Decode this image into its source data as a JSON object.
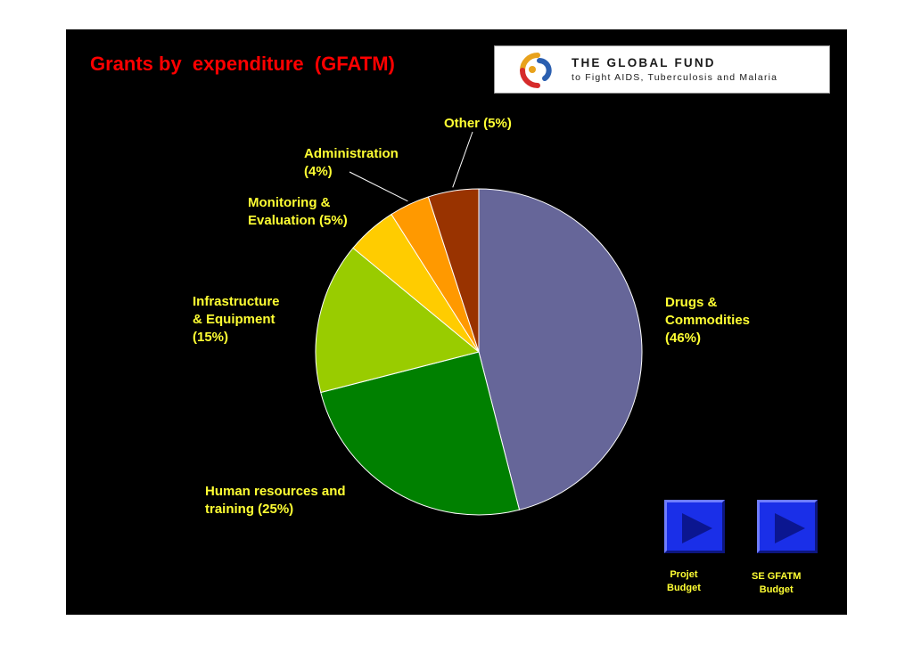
{
  "title": "Grants by  expenditure  (GFATM)",
  "logo": {
    "line1": "THE GLOBAL FUND",
    "line2": "to Fight AIDS, Tuberculosis and Malaria",
    "colors": [
      "#e8a21c",
      "#d62b2b",
      "#2b5fb0"
    ]
  },
  "colors": {
    "background": "#000000",
    "title": "#ff0000",
    "label": "#ffff33",
    "button": "#1a2fe8"
  },
  "chart_data": {
    "type": "pie",
    "title": "Grants by  expenditure  (GFATM)",
    "start": "12 o'clock",
    "direction": "clockwise",
    "slices": [
      {
        "label": "Drugs &\nCommodities\n(46%)",
        "value": 46,
        "color": "#666699"
      },
      {
        "label": "Human resources and\ntraining (25%)",
        "value": 25,
        "color": "#008000"
      },
      {
        "label": "Infrastructure\n& Equipment\n(15%)",
        "value": 15,
        "color": "#99cc00"
      },
      {
        "label": "Monitoring &\nEvaluation (5%)",
        "value": 5,
        "color": "#ffcc00"
      },
      {
        "label": "Administration\n(4%)",
        "value": 4,
        "color": "#ff9900"
      },
      {
        "label": "Other (5%)",
        "value": 5,
        "color": "#993300"
      }
    ]
  },
  "nav": {
    "projet_label": "Projet\nBudget",
    "se_label": "SE GFATM\nBudget"
  }
}
